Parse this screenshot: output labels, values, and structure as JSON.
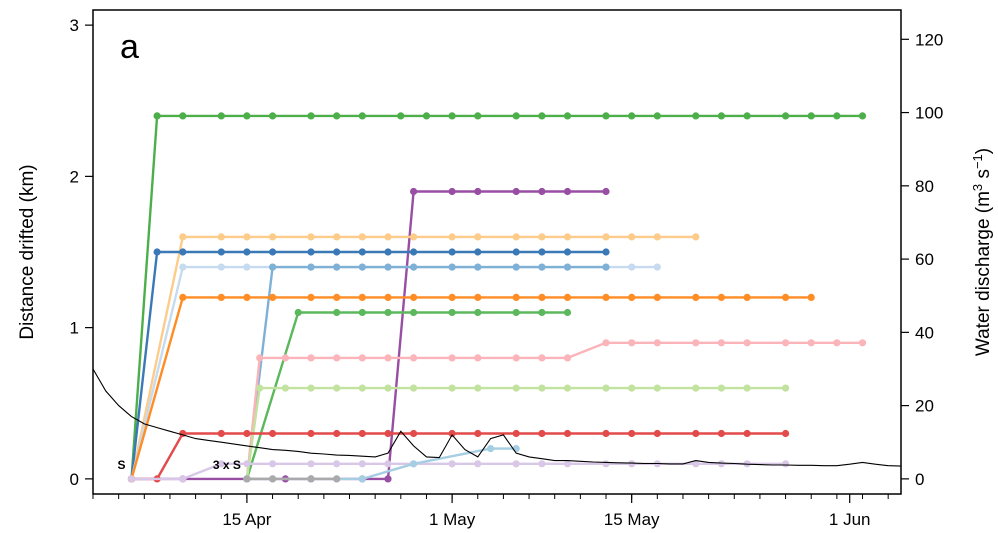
{
  "chart_data": {
    "type": "line",
    "panel_label": "a",
    "ylabel": "Distance drifted (km)",
    "y2label": "Water discharge (m3 s-1)",
    "y2label_parts": {
      "base": "Water discharge (m",
      "sup1": "3",
      "mid": " s",
      "sup2": "−1",
      "end": ")"
    },
    "xlim": [
      "2024-04-03",
      "2024-06-05"
    ],
    "ylim": [
      -0.1,
      3.1
    ],
    "y2lim": [
      -4.13,
      128
    ],
    "x_ticks": [
      "2024-04-15",
      "2024-05-01",
      "2024-05-15",
      "2024-06-01"
    ],
    "x_tick_labels": [
      "15 Apr",
      "1 May",
      "15 May",
      "1 Jun"
    ],
    "y_ticks": [
      0,
      1,
      2,
      3
    ],
    "y_tick_labels": [
      "0",
      "1",
      "2",
      "3"
    ],
    "y2_ticks": [
      0,
      20,
      40,
      60,
      80,
      100,
      120
    ],
    "y2_tick_labels": [
      "0",
      "20",
      "40",
      "60",
      "80",
      "100",
      "120"
    ],
    "grid": false,
    "legend": "none",
    "annotations": [
      {
        "text": "S",
        "x": "2024-04-06",
        "y": 0.0
      },
      {
        "text": "3 x S",
        "x": "2024-04-15",
        "y": 0.0
      }
    ],
    "series": [
      {
        "color": "#4daf4a",
        "x": [
          "2024-04-06",
          "2024-04-08",
          "2024-04-10",
          "2024-04-13",
          "2024-04-15",
          "2024-04-17",
          "2024-04-20",
          "2024-04-22",
          "2024-04-24",
          "2024-04-27",
          "2024-04-29",
          "2024-05-01",
          "2024-05-03",
          "2024-05-06",
          "2024-05-08",
          "2024-05-10",
          "2024-05-13",
          "2024-05-15",
          "2024-05-17",
          "2024-05-20",
          "2024-05-22",
          "2024-05-24",
          "2024-05-27",
          "2024-05-29",
          "2024-05-31",
          "2024-06-02"
        ],
        "y": [
          0,
          2.4,
          2.4,
          2.4,
          2.4,
          2.4,
          2.4,
          2.4,
          2.4,
          2.4,
          2.4,
          2.4,
          2.4,
          2.4,
          2.4,
          2.4,
          2.4,
          2.4,
          2.4,
          2.4,
          2.4,
          2.4,
          2.4,
          2.4,
          2.4,
          2.4
        ]
      },
      {
        "color": "#984ea3",
        "x": [
          "2024-04-06",
          "2024-04-10",
          "2024-04-15",
          "2024-04-18",
          "2024-04-20",
          "2024-04-24",
          "2024-04-26",
          "2024-04-28",
          "2024-05-01",
          "2024-05-03",
          "2024-05-06",
          "2024-05-08",
          "2024-05-10",
          "2024-05-13"
        ],
        "y": [
          0,
          0,
          0,
          0,
          0,
          0,
          0,
          1.9,
          1.9,
          1.9,
          1.9,
          1.9,
          1.9,
          1.9
        ]
      },
      {
        "color": "#fdcc8a",
        "x": [
          "2024-04-06",
          "2024-04-10",
          "2024-04-13",
          "2024-04-15",
          "2024-04-17",
          "2024-04-20",
          "2024-04-22",
          "2024-04-24",
          "2024-04-26",
          "2024-04-28",
          "2024-05-01",
          "2024-05-03",
          "2024-05-06",
          "2024-05-08",
          "2024-05-10",
          "2024-05-13",
          "2024-05-15",
          "2024-05-17",
          "2024-05-20"
        ],
        "y": [
          0,
          1.6,
          1.6,
          1.6,
          1.6,
          1.6,
          1.6,
          1.6,
          1.6,
          1.6,
          1.6,
          1.6,
          1.6,
          1.6,
          1.6,
          1.6,
          1.6,
          1.6,
          1.6
        ]
      },
      {
        "color": "#3a78b6",
        "x": [
          "2024-04-06",
          "2024-04-08",
          "2024-04-10",
          "2024-04-13",
          "2024-04-15",
          "2024-04-17",
          "2024-04-20",
          "2024-04-22",
          "2024-04-24",
          "2024-04-26",
          "2024-04-28",
          "2024-05-01",
          "2024-05-03",
          "2024-05-06",
          "2024-05-08",
          "2024-05-10",
          "2024-05-13"
        ],
        "y": [
          0,
          1.5,
          1.5,
          1.5,
          1.5,
          1.5,
          1.5,
          1.5,
          1.5,
          1.5,
          1.5,
          1.5,
          1.5,
          1.5,
          1.5,
          1.5,
          1.5
        ]
      },
      {
        "color": "#c6dbef",
        "x": [
          "2024-04-06",
          "2024-04-10",
          "2024-04-13",
          "2024-04-15",
          "2024-04-17",
          "2024-04-20",
          "2024-04-22",
          "2024-04-24",
          "2024-04-26",
          "2024-04-28",
          "2024-05-01",
          "2024-05-03",
          "2024-05-06",
          "2024-05-08",
          "2024-05-10",
          "2024-05-13",
          "2024-05-15",
          "2024-05-17"
        ],
        "y": [
          0,
          1.4,
          1.4,
          1.4,
          1.4,
          1.4,
          1.4,
          1.4,
          1.4,
          1.4,
          1.4,
          1.4,
          1.4,
          1.4,
          1.4,
          1.4,
          1.4,
          1.4
        ]
      },
      {
        "color": "#7fb0d6",
        "x": [
          "2024-04-15",
          "2024-04-17",
          "2024-04-20",
          "2024-04-22",
          "2024-04-24",
          "2024-04-26",
          "2024-04-28",
          "2024-05-01",
          "2024-05-03",
          "2024-05-06",
          "2024-05-08",
          "2024-05-10",
          "2024-05-13"
        ],
        "y": [
          0,
          1.4,
          1.4,
          1.4,
          1.4,
          1.4,
          1.4,
          1.4,
          1.4,
          1.4,
          1.4,
          1.4,
          1.4
        ]
      },
      {
        "color": "#ff8c24",
        "x": [
          "2024-04-06",
          "2024-04-10",
          "2024-04-13",
          "2024-04-15",
          "2024-04-17",
          "2024-04-20",
          "2024-04-22",
          "2024-04-24",
          "2024-04-26",
          "2024-04-28",
          "2024-05-01",
          "2024-05-03",
          "2024-05-06",
          "2024-05-08",
          "2024-05-10",
          "2024-05-13",
          "2024-05-15",
          "2024-05-17",
          "2024-05-20",
          "2024-05-22",
          "2024-05-24",
          "2024-05-27",
          "2024-05-29"
        ],
        "y": [
          0,
          1.2,
          1.2,
          1.2,
          1.2,
          1.2,
          1.2,
          1.2,
          1.2,
          1.2,
          1.2,
          1.2,
          1.2,
          1.2,
          1.2,
          1.2,
          1.2,
          1.2,
          1.2,
          1.2,
          1.2,
          1.2,
          1.2
        ]
      },
      {
        "color": "#5cb85c",
        "x": [
          "2024-04-15",
          "2024-04-19",
          "2024-04-22",
          "2024-04-24",
          "2024-04-26",
          "2024-04-28",
          "2024-05-01",
          "2024-05-03",
          "2024-05-06",
          "2024-05-08",
          "2024-05-10"
        ],
        "y": [
          0,
          1.1,
          1.1,
          1.1,
          1.1,
          1.1,
          1.1,
          1.1,
          1.1,
          1.1,
          1.1
        ]
      },
      {
        "color": "#fbb4b9",
        "x": [
          "2024-04-15",
          "2024-04-16",
          "2024-04-18",
          "2024-04-20",
          "2024-04-22",
          "2024-04-24",
          "2024-04-26",
          "2024-04-28",
          "2024-05-01",
          "2024-05-03",
          "2024-05-06",
          "2024-05-08",
          "2024-05-10",
          "2024-05-13",
          "2024-05-15",
          "2024-05-17",
          "2024-05-20",
          "2024-05-22",
          "2024-05-24",
          "2024-05-27",
          "2024-05-29",
          "2024-05-31",
          "2024-06-02"
        ],
        "y": [
          0,
          0.8,
          0.8,
          0.8,
          0.8,
          0.8,
          0.8,
          0.8,
          0.8,
          0.8,
          0.8,
          0.8,
          0.8,
          0.9,
          0.9,
          0.9,
          0.9,
          0.9,
          0.9,
          0.9,
          0.9,
          0.9,
          0.9
        ]
      },
      {
        "color": "#c2e29f",
        "x": [
          "2024-04-15",
          "2024-04-16",
          "2024-04-18",
          "2024-04-20",
          "2024-04-22",
          "2024-04-24",
          "2024-04-26",
          "2024-04-28",
          "2024-05-01",
          "2024-05-03",
          "2024-05-06",
          "2024-05-08",
          "2024-05-10",
          "2024-05-13",
          "2024-05-15",
          "2024-05-17",
          "2024-05-20",
          "2024-05-22",
          "2024-05-24",
          "2024-05-27"
        ],
        "y": [
          0,
          0.6,
          0.6,
          0.6,
          0.6,
          0.6,
          0.6,
          0.6,
          0.6,
          0.6,
          0.6,
          0.6,
          0.6,
          0.6,
          0.6,
          0.6,
          0.6,
          0.6,
          0.6,
          0.6
        ]
      },
      {
        "color": "#e34a4a",
        "x": [
          "2024-04-06",
          "2024-04-08",
          "2024-04-10",
          "2024-04-13",
          "2024-04-15",
          "2024-04-17",
          "2024-04-20",
          "2024-04-22",
          "2024-04-24",
          "2024-04-26",
          "2024-04-28",
          "2024-05-01",
          "2024-05-03",
          "2024-05-06",
          "2024-05-08",
          "2024-05-10",
          "2024-05-13",
          "2024-05-15",
          "2024-05-17",
          "2024-05-20",
          "2024-05-22",
          "2024-05-24",
          "2024-05-27"
        ],
        "y": [
          0,
          0,
          0.3,
          0.3,
          0.3,
          0.3,
          0.3,
          0.3,
          0.3,
          0.3,
          0.3,
          0.3,
          0.3,
          0.3,
          0.3,
          0.3,
          0.3,
          0.3,
          0.3,
          0.3,
          0.3,
          0.3,
          0.3
        ]
      },
      {
        "color": "#d9c7e8",
        "x": [
          "2024-04-06",
          "2024-04-10",
          "2024-04-13",
          "2024-04-15",
          "2024-04-17",
          "2024-04-20",
          "2024-04-22",
          "2024-04-24",
          "2024-04-26",
          "2024-04-28",
          "2024-05-01",
          "2024-05-03",
          "2024-05-06",
          "2024-05-08",
          "2024-05-10",
          "2024-05-13",
          "2024-05-15",
          "2024-05-17",
          "2024-05-20",
          "2024-05-22",
          "2024-05-24",
          "2024-05-27"
        ],
        "y": [
          0,
          0,
          0.1,
          0.1,
          0.1,
          0.1,
          0.1,
          0.1,
          0.1,
          0.1,
          0.1,
          0.1,
          0.1,
          0.1,
          0.1,
          0.1,
          0.1,
          0.1,
          0.1,
          0.1,
          0.1,
          0.1
        ]
      },
      {
        "color": "#a6cee3",
        "x": [
          "2024-04-15",
          "2024-04-17",
          "2024-04-20",
          "2024-04-22",
          "2024-04-24",
          "2024-04-28",
          "2024-05-04",
          "2024-05-06"
        ],
        "y": [
          0,
          0,
          0,
          0,
          0,
          0.1,
          0.2,
          0.2
        ]
      },
      {
        "color": "#aaaaaa",
        "x": [
          "2024-04-15",
          "2024-04-17",
          "2024-04-20",
          "2024-04-22"
        ],
        "y": [
          0,
          0,
          0,
          0
        ]
      }
    ],
    "discharge": {
      "color": "#000000",
      "x": [
        "2024-04-03",
        "2024-04-04",
        "2024-04-05",
        "2024-04-06",
        "2024-04-07",
        "2024-04-08",
        "2024-04-09",
        "2024-04-10",
        "2024-04-11",
        "2024-04-12",
        "2024-04-13",
        "2024-04-14",
        "2024-04-15",
        "2024-04-16",
        "2024-04-17",
        "2024-04-18",
        "2024-04-19",
        "2024-04-20",
        "2024-04-21",
        "2024-04-22",
        "2024-04-23",
        "2024-04-24",
        "2024-04-25",
        "2024-04-26",
        "2024-04-27",
        "2024-04-28",
        "2024-04-29",
        "2024-04-30",
        "2024-05-01",
        "2024-05-02",
        "2024-05-03",
        "2024-05-04",
        "2024-05-05",
        "2024-05-06",
        "2024-05-07",
        "2024-05-08",
        "2024-05-09",
        "2024-05-10",
        "2024-05-11",
        "2024-05-12",
        "2024-05-13",
        "2024-05-14",
        "2024-05-15",
        "2024-05-16",
        "2024-05-17",
        "2024-05-18",
        "2024-05-19",
        "2024-05-20",
        "2024-05-21",
        "2024-05-22",
        "2024-05-23",
        "2024-05-24",
        "2024-05-25",
        "2024-05-26",
        "2024-05-27",
        "2024-05-28",
        "2024-05-29",
        "2024-05-30",
        "2024-05-31",
        "2024-06-01",
        "2024-06-02",
        "2024-06-03",
        "2024-06-04",
        "2024-06-05"
      ],
      "y": [
        30,
        24,
        20,
        17,
        15,
        14,
        13,
        12,
        11,
        10.5,
        10,
        9.5,
        9,
        8.5,
        8,
        7.8,
        7.5,
        7,
        6.8,
        6.5,
        6.4,
        6.2,
        6,
        7,
        13,
        9,
        6,
        5.8,
        12,
        8,
        6,
        11,
        12,
        7,
        6,
        5.5,
        5,
        5,
        4.8,
        4.6,
        4.5,
        4.4,
        4.3,
        4.2,
        4.2,
        4.1,
        4.1,
        5,
        4.5,
        4.3,
        4.2,
        4,
        3.9,
        3.8,
        3.8,
        3.7,
        3.7,
        3.6,
        3.6,
        4,
        4.5,
        4,
        3.6,
        3.5
      ]
    }
  }
}
